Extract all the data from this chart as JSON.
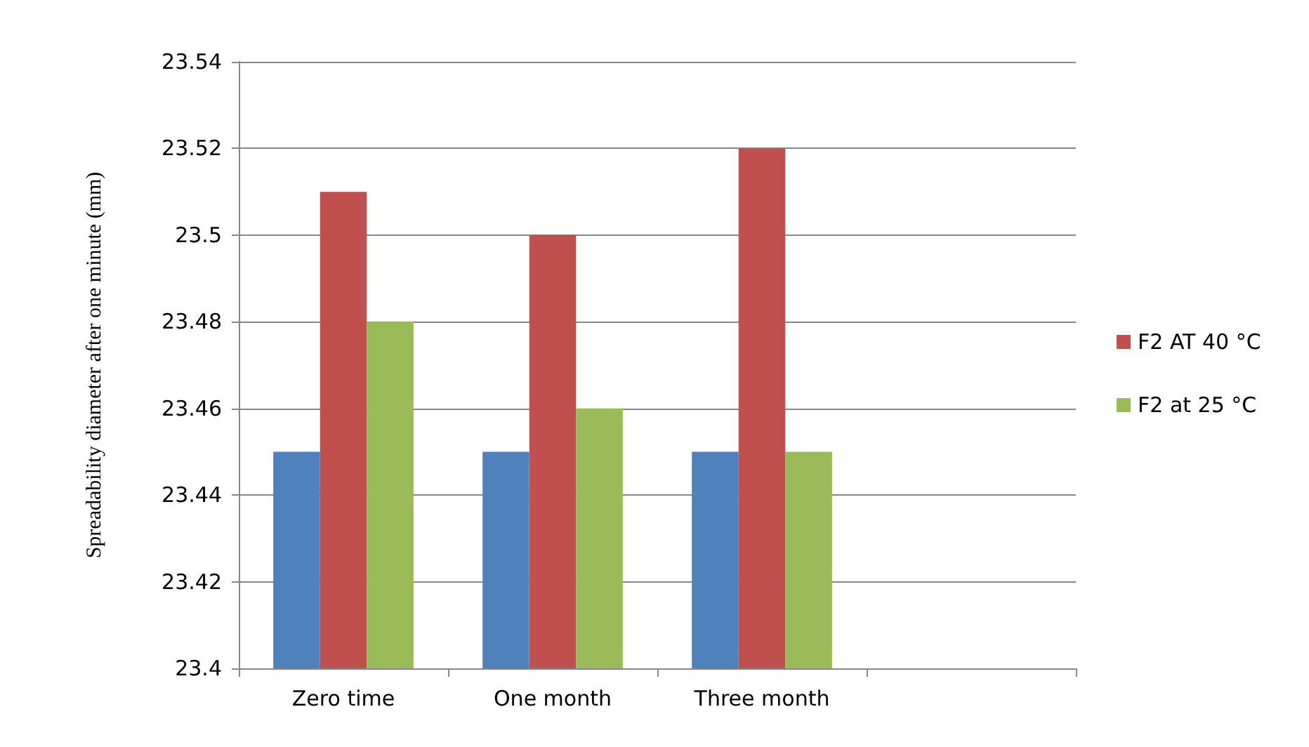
{
  "chart_data": {
    "type": "bar",
    "ylabel": "Spreadability diameter after one minute (mm)",
    "categories": [
      "Zero time",
      "One month",
      "Three month",
      null
    ],
    "series": [
      {
        "color": "#4f81bd",
        "values": [
          23.45,
          23.45,
          23.45,
          null
        ]
      },
      {
        "name": "F2 AT 40 °C",
        "color": "#c0504d",
        "values": [
          23.51,
          23.5,
          23.52,
          null
        ]
      },
      {
        "name": "F2 at 25 °C",
        "color": "#9bbb59",
        "values": [
          23.48,
          23.46,
          23.45,
          null
        ]
      }
    ],
    "ylim": [
      23.4,
      23.54
    ],
    "yticks": [
      23.4,
      23.42,
      23.44,
      23.46,
      23.48,
      23.5,
      23.52,
      23.54
    ],
    "grid": "y",
    "legend": "right"
  }
}
